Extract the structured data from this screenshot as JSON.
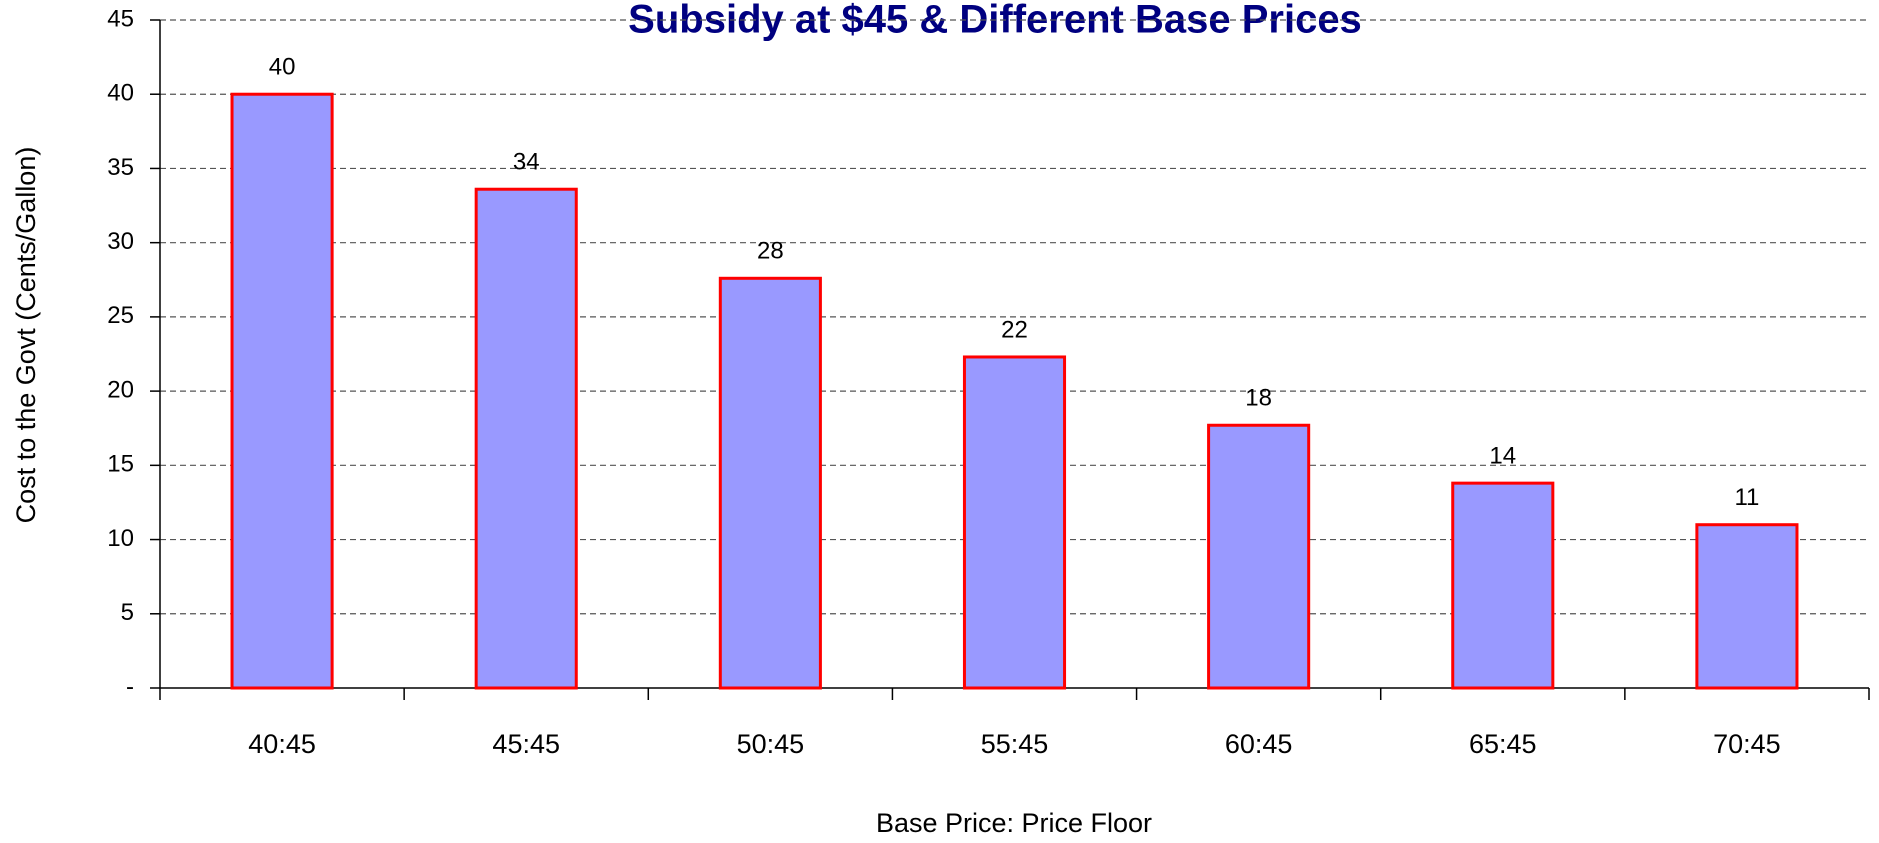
{
  "chart_data": {
    "type": "bar",
    "title": "Subsidy at $45 & Different Base Prices",
    "x_label": "Base Price: Price Floor",
    "y_label": "Cost to the Govt (Cents/Gallon)",
    "categories": [
      "40:45",
      "45:45",
      "50:45",
      "55:45",
      "60:45",
      "65:45",
      "70:45"
    ],
    "values": [
      40,
      33.6,
      27.6,
      22.3,
      17.7,
      13.8,
      11.0
    ],
    "value_labels": [
      "40",
      "34",
      "28",
      "22",
      "18",
      "14",
      "11"
    ],
    "color": "#9999ff",
    "edge_color": "#ff0000",
    "ylim": [
      0,
      45
    ],
    "yticks": [
      {
        "value": 0,
        "label": "-"
      },
      5,
      10,
      15,
      20,
      25,
      30,
      35,
      40,
      45
    ],
    "grid": true
  }
}
